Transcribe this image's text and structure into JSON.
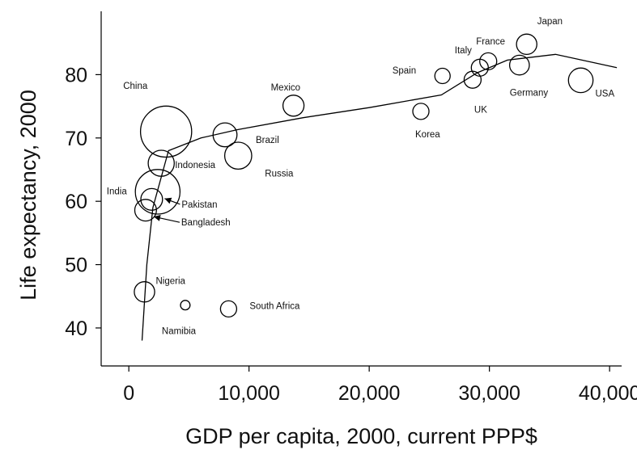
{
  "chart_data": {
    "type": "scatter",
    "title": "",
    "xlabel": "GDP per capita, 2000, current PPP$",
    "ylabel": "Life expectancy, 2000",
    "xlim": [
      -2300,
      41000
    ],
    "ylim": [
      34,
      90
    ],
    "x_ticks": [
      {
        "value": 0,
        "label": "0"
      },
      {
        "value": 10000,
        "label": "10,000"
      },
      {
        "value": 20000,
        "label": "20,000"
      },
      {
        "value": 30000,
        "label": "30,000"
      },
      {
        "value": 40000,
        "label": "40,000"
      }
    ],
    "y_ticks": [
      {
        "value": 40,
        "label": "40"
      },
      {
        "value": 50,
        "label": "50"
      },
      {
        "value": 60,
        "label": "60"
      },
      {
        "value": 70,
        "label": "70"
      },
      {
        "value": 80,
        "label": "80"
      }
    ],
    "grid": false,
    "bubble_encoding": "circle area proportional to population",
    "points": [
      {
        "country": "China",
        "x": 3100,
        "y": 71,
        "size": 10
      },
      {
        "country": "India",
        "x": 2400,
        "y": 61.5,
        "size": 7.6
      },
      {
        "country": "Indonesia",
        "x": 2700,
        "y": 66,
        "size": 2.6
      },
      {
        "country": "Pakistan",
        "x": 1900,
        "y": 60.3,
        "size": 1.8
      },
      {
        "country": "Bangladesh",
        "x": 1400,
        "y": 58.6,
        "size": 1.8
      },
      {
        "country": "Nigeria",
        "x": 1300,
        "y": 45.7,
        "size": 1.6
      },
      {
        "country": "Namibia",
        "x": 4700,
        "y": 43.6,
        "size": 0.35
      },
      {
        "country": "South Africa",
        "x": 8300,
        "y": 43,
        "size": 1
      },
      {
        "country": "Brazil",
        "x": 8000,
        "y": 70.5,
        "size": 2.2
      },
      {
        "country": "Russia",
        "x": 9100,
        "y": 67.2,
        "size": 2.8
      },
      {
        "country": "Mexico",
        "x": 13700,
        "y": 75.1,
        "size": 1.7
      },
      {
        "country": "Korea",
        "x": 24300,
        "y": 74.2,
        "size": 1
      },
      {
        "country": "Spain",
        "x": 26100,
        "y": 79.8,
        "size": 0.9
      },
      {
        "country": "UK",
        "x": 28600,
        "y": 79.2,
        "size": 1.1
      },
      {
        "country": "Italy",
        "x": 29200,
        "y": 81.1,
        "size": 1.1
      },
      {
        "country": "France",
        "x": 29900,
        "y": 82.1,
        "size": 1.1
      },
      {
        "country": "Japan",
        "x": 33100,
        "y": 84.8,
        "size": 1.6
      },
      {
        "country": "Germany",
        "x": 32500,
        "y": 81.5,
        "size": 1.5
      },
      {
        "country": "USA",
        "x": 37600,
        "y": 79.1,
        "size": 2.3
      }
    ],
    "trend_line": {
      "x": [
        1100,
        1500,
        2000,
        3300,
        6000,
        9000,
        14500,
        20000,
        26000,
        29000,
        31500,
        35500,
        40600
      ],
      "y": [
        38,
        50,
        59,
        68,
        70,
        71.3,
        73.2,
        74.8,
        76.8,
        80.3,
        82.3,
        83.2,
        81.1
      ]
    }
  }
}
